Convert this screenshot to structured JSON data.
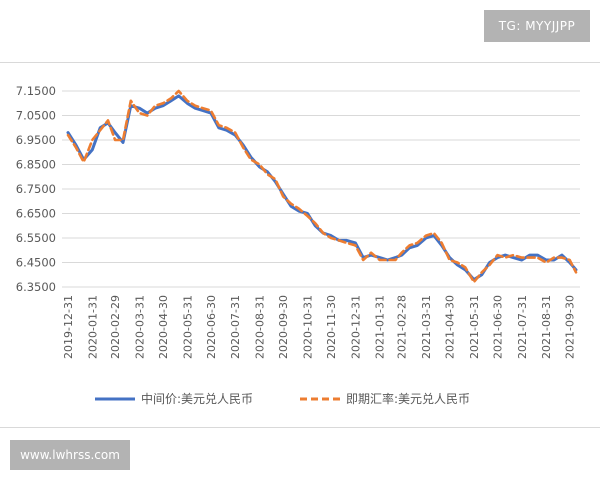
{
  "watermark_top": "TG: MYYJJPP",
  "watermark_bottom": "www.lwhrss.com",
  "chart_data": {
    "type": "line",
    "title": "",
    "xlabel": "",
    "ylabel": "",
    "ylim": [
      6.35,
      7.15
    ],
    "y_ticks": [
      "6.3500",
      "6.4500",
      "6.5500",
      "6.6500",
      "6.7500",
      "6.8500",
      "6.9500",
      "7.0500",
      "7.1500"
    ],
    "grid": "horizontal",
    "legend": "bottom",
    "x_ticks": [
      "2019-12-31",
      "2020-01-31",
      "2020-02-29",
      "2020-03-31",
      "2020-04-30",
      "2020-05-31",
      "2020-06-30",
      "2020-07-31",
      "2020-08-31",
      "2020-09-30",
      "2020-10-31",
      "2020-11-30",
      "2020-12-31",
      "2021-01-31",
      "2021-02-28",
      "2021-03-31",
      "2021-04-30",
      "2021-05-31",
      "2021-06-30",
      "2021-07-31",
      "2021-08-31",
      "2021-09-30"
    ],
    "x": [
      "2019-12-31",
      "2020-01-10",
      "2020-01-20",
      "2020-01-31",
      "2020-02-10",
      "2020-02-20",
      "2020-02-29",
      "2020-03-10",
      "2020-03-20",
      "2020-03-31",
      "2020-04-10",
      "2020-04-20",
      "2020-04-30",
      "2020-05-10",
      "2020-05-20",
      "2020-05-31",
      "2020-06-10",
      "2020-06-20",
      "2020-06-30",
      "2020-07-10",
      "2020-07-20",
      "2020-07-31",
      "2020-08-10",
      "2020-08-20",
      "2020-08-31",
      "2020-09-10",
      "2020-09-20",
      "2020-09-30",
      "2020-10-10",
      "2020-10-20",
      "2020-10-31",
      "2020-11-10",
      "2020-11-20",
      "2020-11-30",
      "2020-12-10",
      "2020-12-20",
      "2020-12-31",
      "2021-01-10",
      "2021-01-20",
      "2021-01-31",
      "2021-02-10",
      "2021-02-20",
      "2021-02-28",
      "2021-03-10",
      "2021-03-20",
      "2021-03-31",
      "2021-04-10",
      "2021-04-20",
      "2021-04-30",
      "2021-05-10",
      "2021-05-20",
      "2021-05-31",
      "2021-06-10",
      "2021-06-20",
      "2021-06-30",
      "2021-07-10",
      "2021-07-20",
      "2021-07-31",
      "2021-08-10",
      "2021-08-20",
      "2021-08-31",
      "2021-09-10",
      "2021-09-20",
      "2021-09-30",
      "2021-10-08"
    ],
    "series": [
      {
        "name": "中间价:美元兑人民币",
        "color": "#4472c4",
        "style": "solid",
        "values": [
          6.98,
          6.93,
          6.87,
          6.91,
          7.0,
          7.02,
          6.98,
          6.94,
          7.09,
          7.08,
          7.06,
          7.08,
          7.09,
          7.11,
          7.13,
          7.1,
          7.08,
          7.07,
          7.06,
          7.0,
          6.99,
          6.97,
          6.93,
          6.88,
          6.84,
          6.82,
          6.78,
          6.73,
          6.68,
          6.66,
          6.65,
          6.6,
          6.57,
          6.56,
          6.54,
          6.54,
          6.53,
          6.47,
          6.48,
          6.47,
          6.46,
          6.47,
          6.48,
          6.51,
          6.52,
          6.55,
          6.56,
          6.52,
          6.47,
          6.44,
          6.42,
          6.38,
          6.4,
          6.45,
          6.47,
          6.48,
          6.47,
          6.46,
          6.48,
          6.48,
          6.46,
          6.46,
          6.48,
          6.45,
          6.42
        ]
      },
      {
        "name": "即期汇率:美元兑人民币",
        "color": "#ed7d31",
        "style": "dashed",
        "values": [
          6.97,
          6.92,
          6.86,
          6.95,
          6.99,
          7.03,
          6.95,
          6.95,
          7.11,
          7.06,
          7.05,
          7.09,
          7.1,
          7.12,
          7.15,
          7.11,
          7.09,
          7.08,
          7.07,
          7.01,
          7.0,
          6.98,
          6.92,
          6.87,
          6.85,
          6.81,
          6.79,
          6.72,
          6.69,
          6.67,
          6.64,
          6.61,
          6.57,
          6.55,
          6.54,
          6.53,
          6.52,
          6.46,
          6.49,
          6.46,
          6.46,
          6.46,
          6.49,
          6.52,
          6.53,
          6.56,
          6.57,
          6.53,
          6.46,
          6.45,
          6.43,
          6.37,
          6.41,
          6.44,
          6.48,
          6.47,
          6.48,
          6.47,
          6.47,
          6.47,
          6.45,
          6.47,
          6.47,
          6.46,
          6.41
        ]
      }
    ]
  }
}
